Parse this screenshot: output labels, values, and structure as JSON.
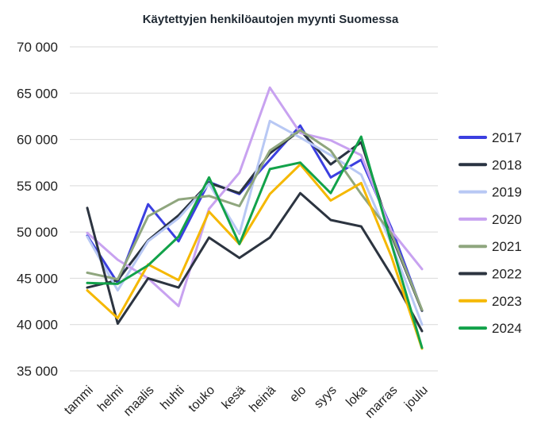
{
  "chart_data": {
    "type": "line",
    "title": "Käytettyjen henkilöautojen myynti Suomessa",
    "xlabel": "",
    "ylabel": "",
    "categories": [
      "tammi",
      "helmi",
      "maalis",
      "huhti",
      "touko",
      "kesä",
      "heinä",
      "elo",
      "syys",
      "loka",
      "marras",
      "joulu"
    ],
    "ylim": [
      35000,
      70000
    ],
    "yticks": [
      35000,
      40000,
      45000,
      50000,
      55000,
      60000,
      65000,
      70000
    ],
    "ytick_labels": [
      "35 000",
      "40 000",
      "45 000",
      "50 000",
      "55 000",
      "60 000",
      "65 000",
      "70 000"
    ],
    "grid": "horizontal",
    "legend_position": "right",
    "series": [
      {
        "name": "2017",
        "color": "#3b3fe0",
        "values": [
          49600,
          44500,
          53000,
          49000,
          55400,
          54100,
          57800,
          61500,
          55900,
          57800,
          50400,
          41500
        ]
      },
      {
        "name": "2018",
        "color": "#2a3442",
        "values": [
          44000,
          44800,
          49100,
          51800,
          55300,
          54200,
          58500,
          61000,
          57300,
          59700,
          49600,
          41500
        ]
      },
      {
        "name": "2019",
        "color": "#b8c8f4",
        "values": [
          49500,
          43700,
          49000,
          51500,
          55200,
          49800,
          62000,
          60200,
          58300,
          56200,
          48700,
          40000
        ]
      },
      {
        "name": "2020",
        "color": "#c8a2f0",
        "values": [
          49900,
          47000,
          45000,
          42000,
          52500,
          56400,
          65600,
          60700,
          59900,
          58300,
          50100,
          46000
        ]
      },
      {
        "name": "2021",
        "color": "#8fa67e",
        "values": [
          45600,
          44900,
          51700,
          53500,
          53900,
          52800,
          58800,
          61000,
          58800,
          54100,
          49800,
          41600
        ]
      },
      {
        "name": "2022",
        "color": "#2c3440",
        "values": [
          52600,
          40100,
          45000,
          44000,
          49400,
          47200,
          49400,
          54200,
          51300,
          50600,
          45300,
          39300
        ]
      },
      {
        "name": "2023",
        "color": "#f5b800",
        "values": [
          43700,
          40700,
          46500,
          44800,
          52200,
          48700,
          54100,
          57300,
          53400,
          55300,
          47300,
          37400
        ]
      },
      {
        "name": "2024",
        "color": "#12a24a",
        "values": [
          44500,
          44400,
          46400,
          49500,
          55900,
          48700,
          56800,
          57500,
          54200,
          60300,
          48700,
          37500
        ]
      }
    ]
  }
}
